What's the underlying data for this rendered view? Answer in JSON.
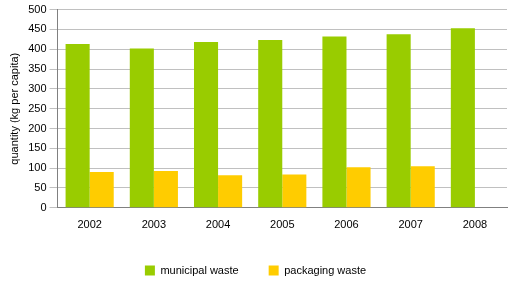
{
  "chart_data": {
    "type": "bar",
    "y_label": "quantity (kg per capita)",
    "categories": [
      "2002",
      "2003",
      "2004",
      "2005",
      "2006",
      "2007",
      "2008"
    ],
    "series": [
      {
        "name": "municipal waste",
        "color": "#99cc00",
        "values": [
          413,
          402,
          418,
          423,
          432,
          438,
          453
        ]
      },
      {
        "name": "packaging waste",
        "color": "#ffcc00",
        "values": [
          90,
          93,
          82,
          84,
          102,
          105,
          null
        ]
      }
    ],
    "ylim": [
      0,
      500
    ],
    "yticks": [
      0,
      50,
      100,
      150,
      200,
      250,
      300,
      350,
      400,
      450,
      500
    ],
    "grid": true,
    "legend": "bottom"
  }
}
